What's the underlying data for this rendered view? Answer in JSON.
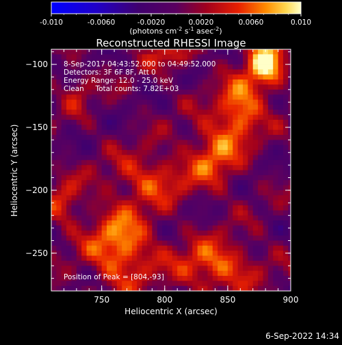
{
  "chart_data": {
    "type": "heatmap",
    "title": "Reconstructed RHESSI Image",
    "xlabel": "Heliocentric X (arcsec)",
    "ylabel": "Heliocentric Y (arcsec)",
    "xlim": [
      710,
      900
    ],
    "ylim": [
      -280,
      -88
    ],
    "x_ticks": [
      750,
      800,
      850,
      900
    ],
    "y_ticks": [
      -100,
      -150,
      -200,
      -250
    ],
    "colorbar": {
      "min": -0.01,
      "max": 0.01,
      "ticks": [
        "-0.010",
        "-0.0060",
        "-0.0020",
        "0.0020",
        "0.0060",
        "0.010"
      ],
      "tick_values": [
        -0.01,
        -0.006,
        -0.002,
        0.002,
        0.006,
        0.01
      ],
      "label": "(photons cm",
      "label_exp1": "-2",
      "label_mid1": " s",
      "label_exp2": "-1",
      "label_mid2": " asec",
      "label_exp3": "-2",
      "label_end": ")"
    },
    "annotations": [
      "8-Sep-2017 04:43:52.000 to 04:49:52.000",
      "Detectors: 3F 6F 8F, Att 0",
      "Energy Range: 12.0 - 25.0 keV",
      "Clean     Total counts: 7.82E+03"
    ],
    "peak_text": "Position of Peak = [804,-93]",
    "peak": [
      804,
      -93
    ],
    "sources": [
      {
        "x": 880,
        "y": -100,
        "amp": 0.0095,
        "sx": 10,
        "sy": 14
      },
      {
        "x": 860,
        "y": -135,
        "amp": 0.0075,
        "sx": 12,
        "sy": 16
      },
      {
        "x": 840,
        "y": -170,
        "amp": 0.006,
        "sx": 14,
        "sy": 18
      },
      {
        "x": 790,
        "y": -190,
        "amp": 0.005,
        "sx": 22,
        "sy": 14
      },
      {
        "x": 765,
        "y": -245,
        "amp": 0.0075,
        "sx": 18,
        "sy": 22
      },
      {
        "x": 840,
        "y": -260,
        "amp": 0.0065,
        "sx": 22,
        "sy": 14
      },
      {
        "x": 720,
        "y": -210,
        "amp": 0.004,
        "sx": 10,
        "sy": 14
      },
      {
        "x": 805,
        "y": -93,
        "amp": 0.004,
        "sx": 12,
        "sy": 8
      },
      {
        "x": 730,
        "y": -120,
        "amp": 0.003,
        "sx": 8,
        "sy": 12
      }
    ]
  },
  "footer": {
    "timestamp": "6-Sep-2022 14:34"
  }
}
